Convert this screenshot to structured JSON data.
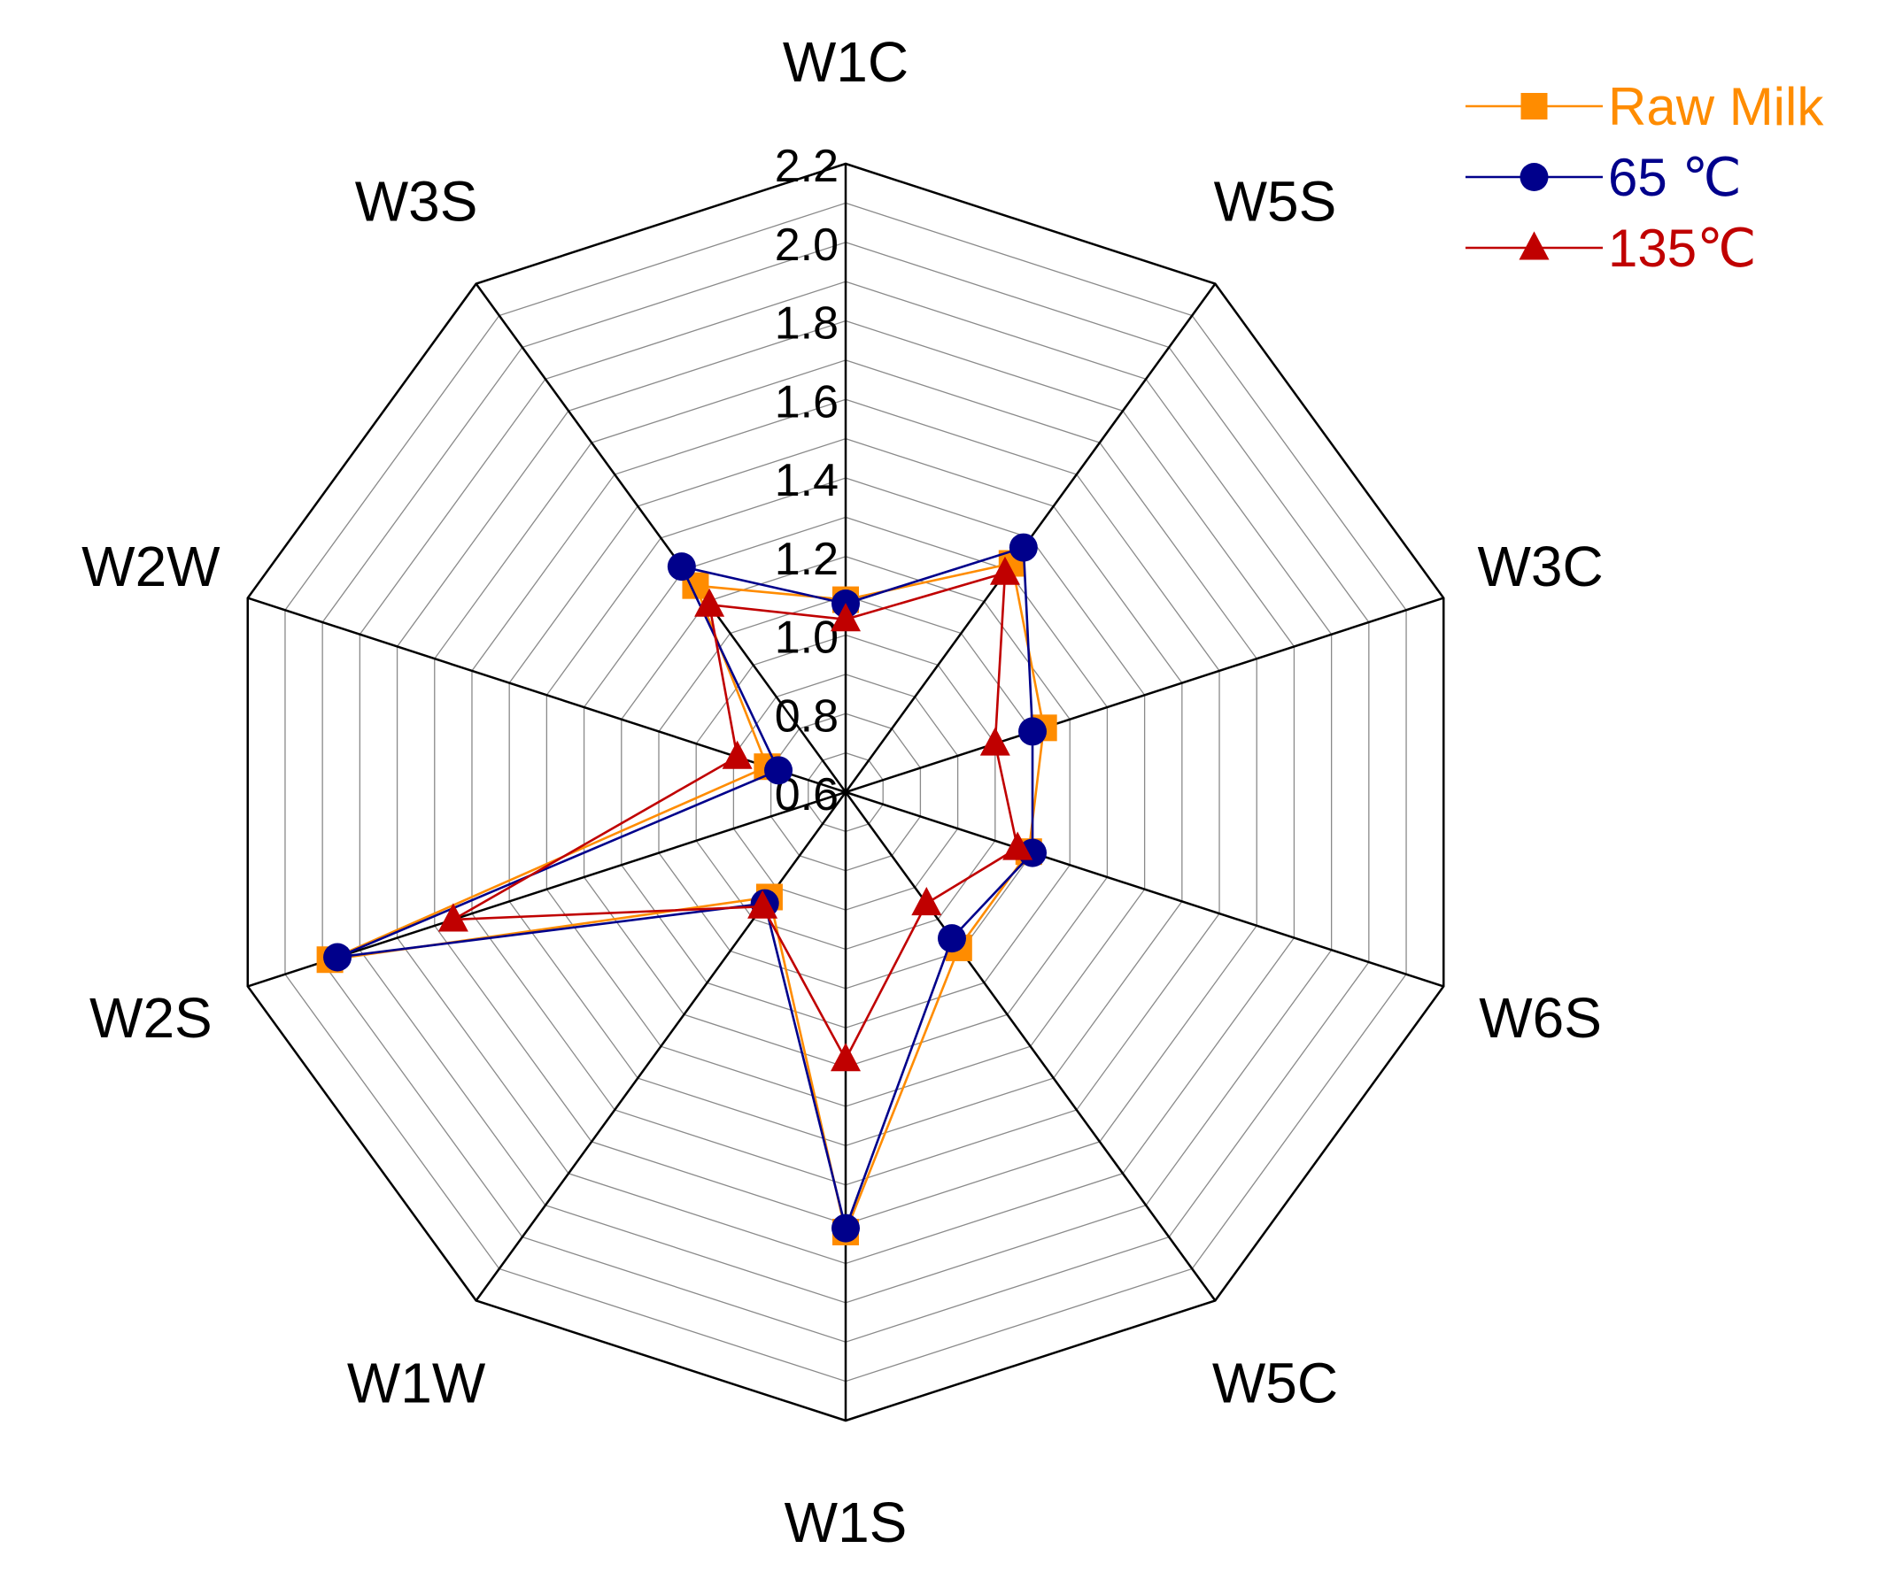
{
  "chart_data": {
    "type": "radar",
    "title": "",
    "axes": [
      "W1C",
      "W5S",
      "W3C",
      "W6S",
      "W5C",
      "W1S",
      "W1W",
      "W2S",
      "W2W",
      "W3S"
    ],
    "radial_range": [
      0.6,
      2.2
    ],
    "radial_ticks": [
      "0.6",
      "0.8",
      "1.0",
      "1.2",
      "1.4",
      "1.6",
      "1.8",
      "2.0",
      "2.2"
    ],
    "grid": true,
    "legend_position": "top-right",
    "series": [
      {
        "name": "Raw Milk",
        "color": "#ff8c00",
        "marker": "square",
        "values": [
          1.09,
          1.32,
          1.13,
          1.09,
          1.09,
          1.72,
          0.93,
          1.98,
          0.81,
          1.25
        ]
      },
      {
        "name": "65 ℃",
        "color": "#00008b",
        "marker": "circle",
        "values": [
          1.08,
          1.37,
          1.1,
          1.1,
          1.06,
          1.71,
          0.95,
          1.96,
          0.78,
          1.31
        ]
      },
      {
        "name": "135℃",
        "color": "#c00000",
        "marker": "triangle",
        "values": [
          1.04,
          1.29,
          1.0,
          1.06,
          0.95,
          1.28,
          0.96,
          1.65,
          0.89,
          1.19
        ]
      }
    ]
  }
}
